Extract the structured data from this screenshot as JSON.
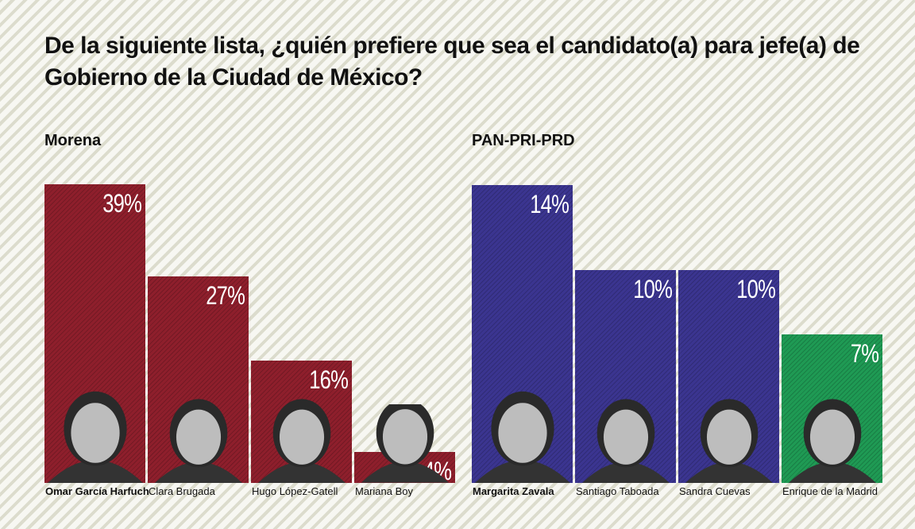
{
  "title": "De la siguiente lista, ¿quién prefiere que sea el candidato(a) para jefe(a) de Gobierno de la Ciudad de México?",
  "colors": {
    "morena": "#8e1f2c",
    "pan_pri_prd": "#3b3590",
    "pri": "#1f9a54"
  },
  "chart_data": [
    {
      "type": "bar",
      "title": "Morena",
      "categories": [
        "Omar García Harfuch",
        "Clara Brugada",
        "Hugo López-Gatell",
        "Mariana Boy"
      ],
      "values": [
        39,
        27,
        16,
        4
      ],
      "labels": [
        "39%",
        "27%",
        "16%",
        "4%"
      ],
      "colors": [
        "#8e1f2c",
        "#8e1f2c",
        "#8e1f2c",
        "#8e1f2c"
      ],
      "highlight": "Omar García Harfuch"
    },
    {
      "type": "bar",
      "title": "PAN-PRI-PRD",
      "categories": [
        "Margarita Zavala",
        "Santiago Taboada",
        "Sandra Cuevas",
        "Enrique de la Madrid"
      ],
      "values": [
        14,
        10,
        10,
        7
      ],
      "labels": [
        "14%",
        "10%",
        "10%",
        "7%"
      ],
      "colors": [
        "#3b3590",
        "#3b3590",
        "#3b3590",
        "#1f9a54"
      ],
      "highlight": "Margarita Zavala"
    }
  ]
}
